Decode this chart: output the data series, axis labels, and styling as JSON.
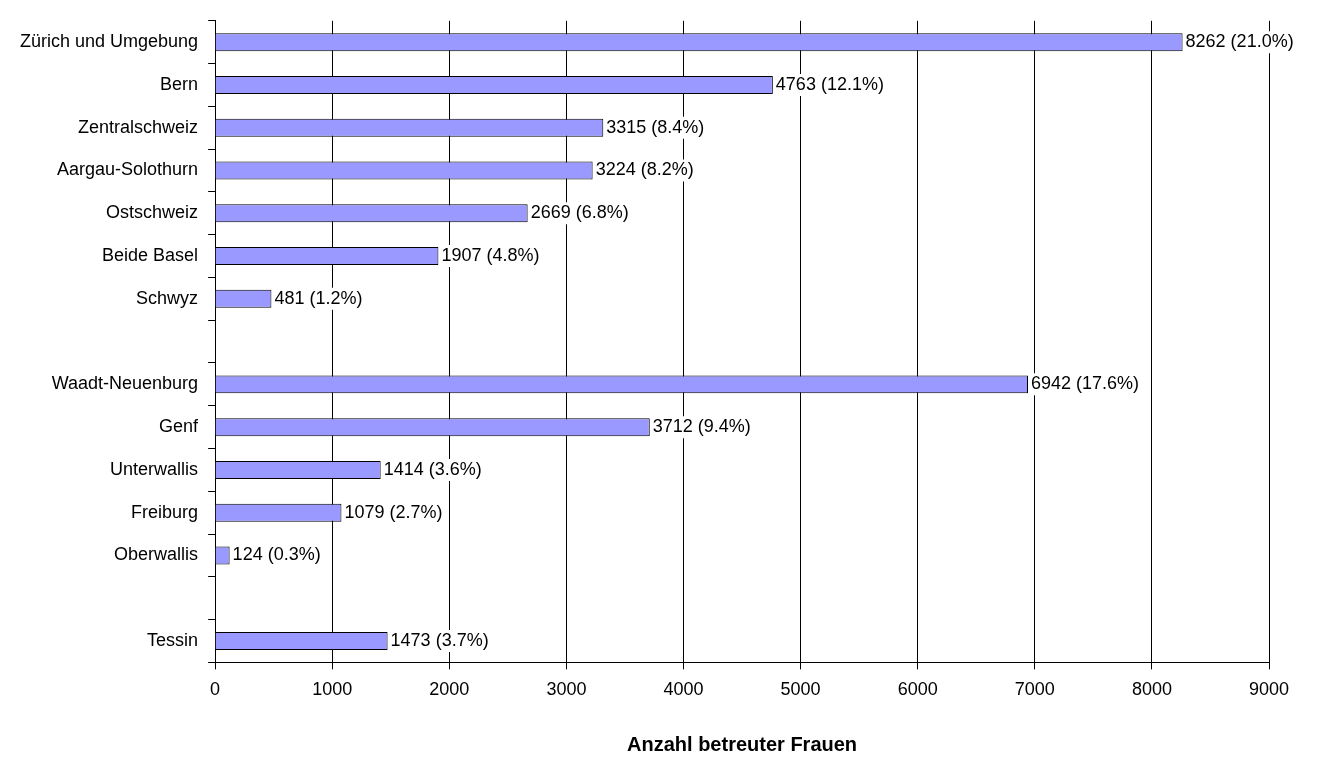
{
  "chart_data": {
    "type": "bar",
    "orientation": "horizontal",
    "xlabel": "Anzahl betreuter Frauen",
    "categories": [
      "Zürich und Umgebung",
      "Bern",
      "Zentralschweiz",
      "Aargau-Solothurn",
      "Ostschweiz",
      "Beide Basel",
      "Schwyz",
      null,
      "Waadt-Neuenburg",
      "Genf",
      "Unterwallis",
      "Freiburg",
      "Oberwallis",
      null,
      "Tessin"
    ],
    "values": [
      8262,
      4763,
      3315,
      3224,
      2669,
      1907,
      481,
      null,
      6942,
      3712,
      1414,
      1079,
      124,
      null,
      1473
    ],
    "value_labels": [
      "8262 (21.0%)",
      "4763 (12.1%)",
      "3315 (8.4%)",
      "3224 (8.2%)",
      "2669 (6.8%)",
      "1907 (4.8%)",
      "481 (1.2%)",
      null,
      "6942 (17.6%)",
      "3712 (9.4%)",
      "1414 (3.6%)",
      "1079 (2.7%)",
      "124 (0.3%)",
      null,
      "1473 (3.7%)"
    ],
    "color": "#9999ff",
    "xlim": [
      0,
      9000
    ],
    "xticks": [
      0,
      1000,
      2000,
      3000,
      4000,
      5000,
      6000,
      7000,
      8000,
      9000
    ],
    "grid": "x"
  }
}
